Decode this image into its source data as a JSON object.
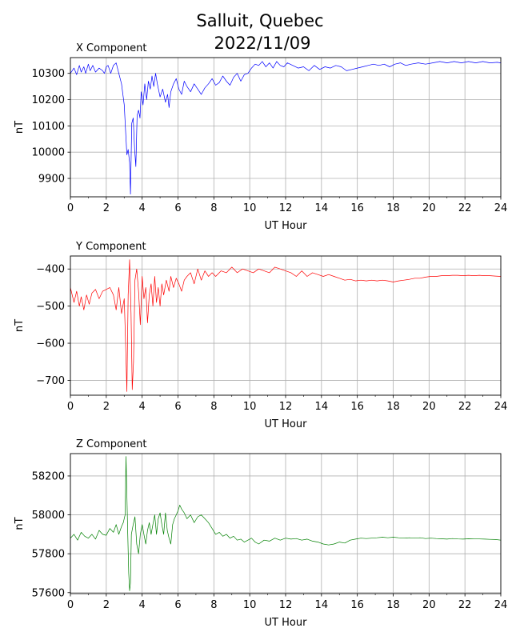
{
  "figure": {
    "title_line1": "Salluit, Quebec",
    "title_line2": "2022/11/09"
  },
  "chart_data": [
    {
      "type": "line",
      "title": "X Component",
      "xlabel": "UT Hour",
      "ylabel": "nT",
      "xlim": [
        0,
        24
      ],
      "ylim": [
        9830,
        10360
      ],
      "xticks": [
        0,
        2,
        4,
        6,
        8,
        10,
        12,
        14,
        16,
        18,
        20,
        22,
        24
      ],
      "yticks": [
        9900,
        10000,
        10100,
        10200,
        10300
      ],
      "grid": true,
      "color": "#0000ff",
      "series": [
        {
          "x": [
            0,
            0.2,
            0.35,
            0.5,
            0.6,
            0.75,
            0.85,
            1.0,
            1.1,
            1.25,
            1.4,
            1.6,
            1.8,
            1.9,
            2.0,
            2.1,
            2.25,
            2.4,
            2.55,
            2.7,
            2.85,
            3.0,
            3.08,
            3.15,
            3.22,
            3.3,
            3.35,
            3.42,
            3.5,
            3.58,
            3.65,
            3.72,
            3.8,
            3.88,
            3.95,
            4.05,
            4.15,
            4.25,
            4.35,
            4.45,
            4.55,
            4.65,
            4.75,
            4.85,
            5.0,
            5.15,
            5.3,
            5.42,
            5.5,
            5.6,
            5.75,
            5.9,
            6.05,
            6.2,
            6.35,
            6.5,
            6.7,
            6.9,
            7.1,
            7.3,
            7.5,
            7.7,
            7.9,
            8.1,
            8.3,
            8.5,
            8.7,
            8.9,
            9.1,
            9.3,
            9.5,
            9.7,
            9.9,
            10.1,
            10.3,
            10.5,
            10.7,
            10.9,
            11.1,
            11.3,
            11.5,
            11.7,
            11.9,
            12.1,
            12.4,
            12.7,
            13.0,
            13.3,
            13.6,
            13.9,
            14.2,
            14.5,
            14.8,
            15.1,
            15.4,
            15.7,
            16.0,
            16.3,
            16.6,
            16.9,
            17.2,
            17.5,
            17.8,
            18.1,
            18.4,
            18.7,
            19.0,
            19.4,
            19.8,
            20.2,
            20.6,
            21.0,
            21.4,
            21.8,
            22.2,
            22.6,
            23.0,
            23.4,
            23.8,
            24.0
          ],
          "y": [
            10300,
            10320,
            10295,
            10330,
            10305,
            10325,
            10300,
            10335,
            10310,
            10330,
            10305,
            10320,
            10310,
            10300,
            10325,
            10330,
            10300,
            10330,
            10340,
            10300,
            10260,
            10180,
            10080,
            9990,
            10010,
            9960,
            9840,
            10110,
            10130,
            10010,
            9945,
            10140,
            10160,
            10130,
            10230,
            10180,
            10260,
            10200,
            10270,
            10240,
            10290,
            10250,
            10300,
            10260,
            10210,
            10240,
            10190,
            10220,
            10170,
            10230,
            10260,
            10280,
            10240,
            10220,
            10270,
            10250,
            10230,
            10260,
            10240,
            10220,
            10245,
            10260,
            10280,
            10255,
            10265,
            10290,
            10270,
            10255,
            10285,
            10300,
            10270,
            10295,
            10300,
            10320,
            10335,
            10330,
            10345,
            10325,
            10340,
            10320,
            10345,
            10330,
            10325,
            10340,
            10330,
            10320,
            10325,
            10310,
            10330,
            10315,
            10325,
            10320,
            10330,
            10325,
            10310,
            10315,
            10320,
            10325,
            10330,
            10335,
            10330,
            10335,
            10325,
            10335,
            10340,
            10330,
            10335,
            10340,
            10335,
            10340,
            10345,
            10340,
            10345,
            10340,
            10345,
            10340,
            10345,
            10340,
            10342,
            10340
          ]
        }
      ]
    },
    {
      "type": "line",
      "title": "Y Component",
      "xlabel": "UT Hour",
      "ylabel": "nT",
      "xlim": [
        0,
        24
      ],
      "ylim": [
        -740,
        -365
      ],
      "xticks": [
        0,
        2,
        4,
        6,
        8,
        10,
        12,
        14,
        16,
        18,
        20,
        22,
        24
      ],
      "yticks": [
        -400,
        -500,
        -600,
        -700
      ],
      "grid": true,
      "color": "#ff0000",
      "series": [
        {
          "x": [
            0,
            0.2,
            0.35,
            0.5,
            0.6,
            0.75,
            0.9,
            1.05,
            1.2,
            1.4,
            1.6,
            1.8,
            2.0,
            2.2,
            2.4,
            2.55,
            2.7,
            2.85,
            3.0,
            3.08,
            3.15,
            3.22,
            3.3,
            3.38,
            3.45,
            3.52,
            3.6,
            3.7,
            3.8,
            3.9,
            4.0,
            4.1,
            4.2,
            4.3,
            4.4,
            4.5,
            4.6,
            4.7,
            4.8,
            4.9,
            5.0,
            5.1,
            5.2,
            5.35,
            5.5,
            5.6,
            5.75,
            5.9,
            6.05,
            6.2,
            6.35,
            6.5,
            6.7,
            6.9,
            7.1,
            7.3,
            7.5,
            7.7,
            7.9,
            8.1,
            8.4,
            8.7,
            9.0,
            9.3,
            9.6,
            9.9,
            10.2,
            10.5,
            10.8,
            11.1,
            11.4,
            11.7,
            12.0,
            12.3,
            12.6,
            12.9,
            13.2,
            13.5,
            13.8,
            14.1,
            14.4,
            14.7,
            15.0,
            15.3,
            15.6,
            15.9,
            16.2,
            16.5,
            16.8,
            17.1,
            17.4,
            17.7,
            18.0,
            18.3,
            18.6,
            18.9,
            19.2,
            19.5,
            19.8,
            20.1,
            20.4,
            20.7,
            21.0,
            21.3,
            21.6,
            21.9,
            22.2,
            22.5,
            22.8,
            23.1,
            23.4,
            23.7,
            24.0
          ],
          "y": [
            -450,
            -490,
            -460,
            -500,
            -475,
            -510,
            -470,
            -495,
            -465,
            -455,
            -480,
            -460,
            -455,
            -450,
            -470,
            -510,
            -450,
            -520,
            -480,
            -600,
            -730,
            -470,
            -375,
            -520,
            -725,
            -650,
            -430,
            -400,
            -460,
            -550,
            -420,
            -480,
            -450,
            -545,
            -470,
            -440,
            -500,
            -420,
            -490,
            -450,
            -500,
            -440,
            -470,
            -430,
            -460,
            -420,
            -450,
            -425,
            -440,
            -460,
            -430,
            -420,
            -410,
            -440,
            -400,
            -430,
            -405,
            -420,
            -410,
            -420,
            -405,
            -410,
            -395,
            -410,
            -400,
            -405,
            -410,
            -400,
            -405,
            -410,
            -395,
            -400,
            -405,
            -410,
            -420,
            -405,
            -420,
            -410,
            -415,
            -420,
            -415,
            -420,
            -425,
            -430,
            -428,
            -432,
            -430,
            -432,
            -430,
            -432,
            -430,
            -432,
            -435,
            -432,
            -430,
            -428,
            -425,
            -425,
            -422,
            -420,
            -420,
            -418,
            -418,
            -417,
            -417,
            -418,
            -417,
            -418,
            -417,
            -418,
            -418,
            -419,
            -420
          ]
        }
      ]
    },
    {
      "type": "line",
      "title": "Z Component",
      "xlabel": "UT Hour",
      "ylabel": "nT",
      "xlim": [
        0,
        24
      ],
      "ylim": [
        57595,
        58315
      ],
      "xticks": [
        0,
        2,
        4,
        6,
        8,
        10,
        12,
        14,
        16,
        18,
        20,
        22,
        24
      ],
      "yticks": [
        57600,
        57800,
        58000,
        58200
      ],
      "grid": true,
      "color": "#008000",
      "series": [
        {
          "x": [
            0,
            0.2,
            0.4,
            0.6,
            0.8,
            1.0,
            1.2,
            1.4,
            1.6,
            1.8,
            2.0,
            2.2,
            2.4,
            2.55,
            2.7,
            2.85,
            2.95,
            3.05,
            3.1,
            3.15,
            3.2,
            3.25,
            3.3,
            3.35,
            3.4,
            3.5,
            3.6,
            3.7,
            3.8,
            3.9,
            4.0,
            4.1,
            4.2,
            4.3,
            4.4,
            4.5,
            4.6,
            4.7,
            4.8,
            4.9,
            5.0,
            5.1,
            5.2,
            5.3,
            5.4,
            5.5,
            5.6,
            5.7,
            5.8,
            5.9,
            6.0,
            6.1,
            6.2,
            6.35,
            6.5,
            6.7,
            6.9,
            7.1,
            7.3,
            7.5,
            7.7,
            7.9,
            8.1,
            8.3,
            8.5,
            8.7,
            8.9,
            9.1,
            9.3,
            9.5,
            9.7,
            9.9,
            10.1,
            10.3,
            10.5,
            10.8,
            11.1,
            11.4,
            11.7,
            12.0,
            12.3,
            12.6,
            12.9,
            13.2,
            13.5,
            13.8,
            14.1,
            14.4,
            14.7,
            15.0,
            15.3,
            15.6,
            15.9,
            16.2,
            16.5,
            16.8,
            17.1,
            17.4,
            17.7,
            18.0,
            18.3,
            18.6,
            18.9,
            19.2,
            19.5,
            19.8,
            20.1,
            20.4,
            20.7,
            21.0,
            21.3,
            21.6,
            21.9,
            22.2,
            22.5,
            22.8,
            23.1,
            23.4,
            23.7,
            24.0
          ],
          "y": [
            57880,
            57900,
            57870,
            57910,
            57890,
            57880,
            57900,
            57875,
            57920,
            57900,
            57895,
            57930,
            57910,
            57950,
            57900,
            57940,
            57960,
            58000,
            58300,
            58100,
            57900,
            57700,
            57610,
            57650,
            57900,
            57950,
            57990,
            57850,
            57800,
            57900,
            57950,
            57900,
            57850,
            57920,
            57960,
            57900,
            57950,
            58000,
            57900,
            57980,
            58010,
            57950,
            57900,
            58010,
            57920,
            57880,
            57850,
            57950,
            57980,
            58000,
            58020,
            58050,
            58030,
            58010,
            57980,
            58000,
            57960,
            57990,
            58000,
            57980,
            57960,
            57930,
            57900,
            57910,
            57890,
            57900,
            57880,
            57890,
            57870,
            57875,
            57860,
            57870,
            57880,
            57860,
            57850,
            57870,
            57865,
            57880,
            57870,
            57880,
            57875,
            57878,
            57870,
            57875,
            57865,
            57860,
            57850,
            57845,
            57850,
            57860,
            57855,
            57870,
            57875,
            57880,
            57878,
            57880,
            57882,
            57885,
            57882,
            57885,
            57882,
            57880,
            57882,
            57880,
            57882,
            57878,
            57880,
            57878,
            57877,
            57875,
            57878,
            57876,
            57875,
            57877,
            57876,
            57876,
            57875,
            57874,
            57873,
            57870
          ]
        }
      ]
    }
  ]
}
